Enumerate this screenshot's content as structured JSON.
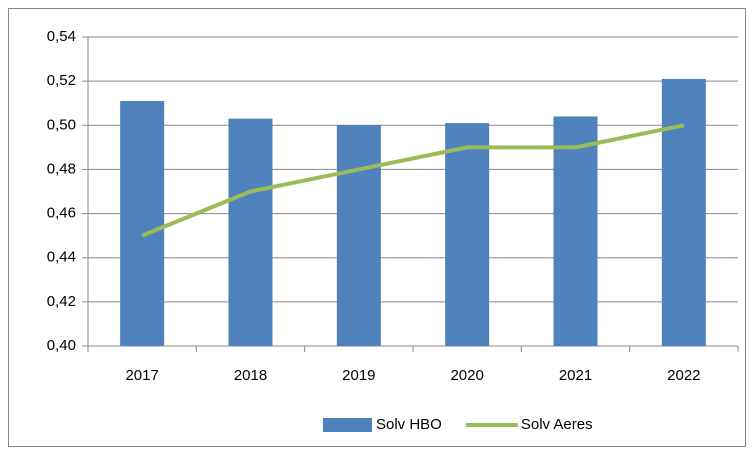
{
  "chart_data": {
    "type": "bar",
    "categories": [
      "2017",
      "2018",
      "2019",
      "2020",
      "2021",
      "2022"
    ],
    "series": [
      {
        "name": "Solv HBO",
        "type": "bar",
        "color": "#4f81bd",
        "values": [
          0.511,
          0.503,
          0.5,
          0.501,
          0.504,
          0.521
        ]
      },
      {
        "name": "Solv Aeres",
        "type": "line",
        "color": "#9bbb59",
        "values": [
          0.45,
          0.47,
          0.48,
          0.49,
          0.49,
          0.5
        ]
      }
    ],
    "ylim": [
      0.4,
      0.54
    ],
    "yticks": [
      {
        "value": 0.4,
        "label": "0,40"
      },
      {
        "value": 0.42,
        "label": "0,42"
      },
      {
        "value": 0.44,
        "label": "0,44"
      },
      {
        "value": 0.46,
        "label": "0,46"
      },
      {
        "value": 0.48,
        "label": "0,48"
      },
      {
        "value": 0.5,
        "label": "0,50"
      },
      {
        "value": 0.52,
        "label": "0,52"
      },
      {
        "value": 0.54,
        "label": "0,54"
      }
    ],
    "grid": true,
    "legend": "bottom"
  }
}
